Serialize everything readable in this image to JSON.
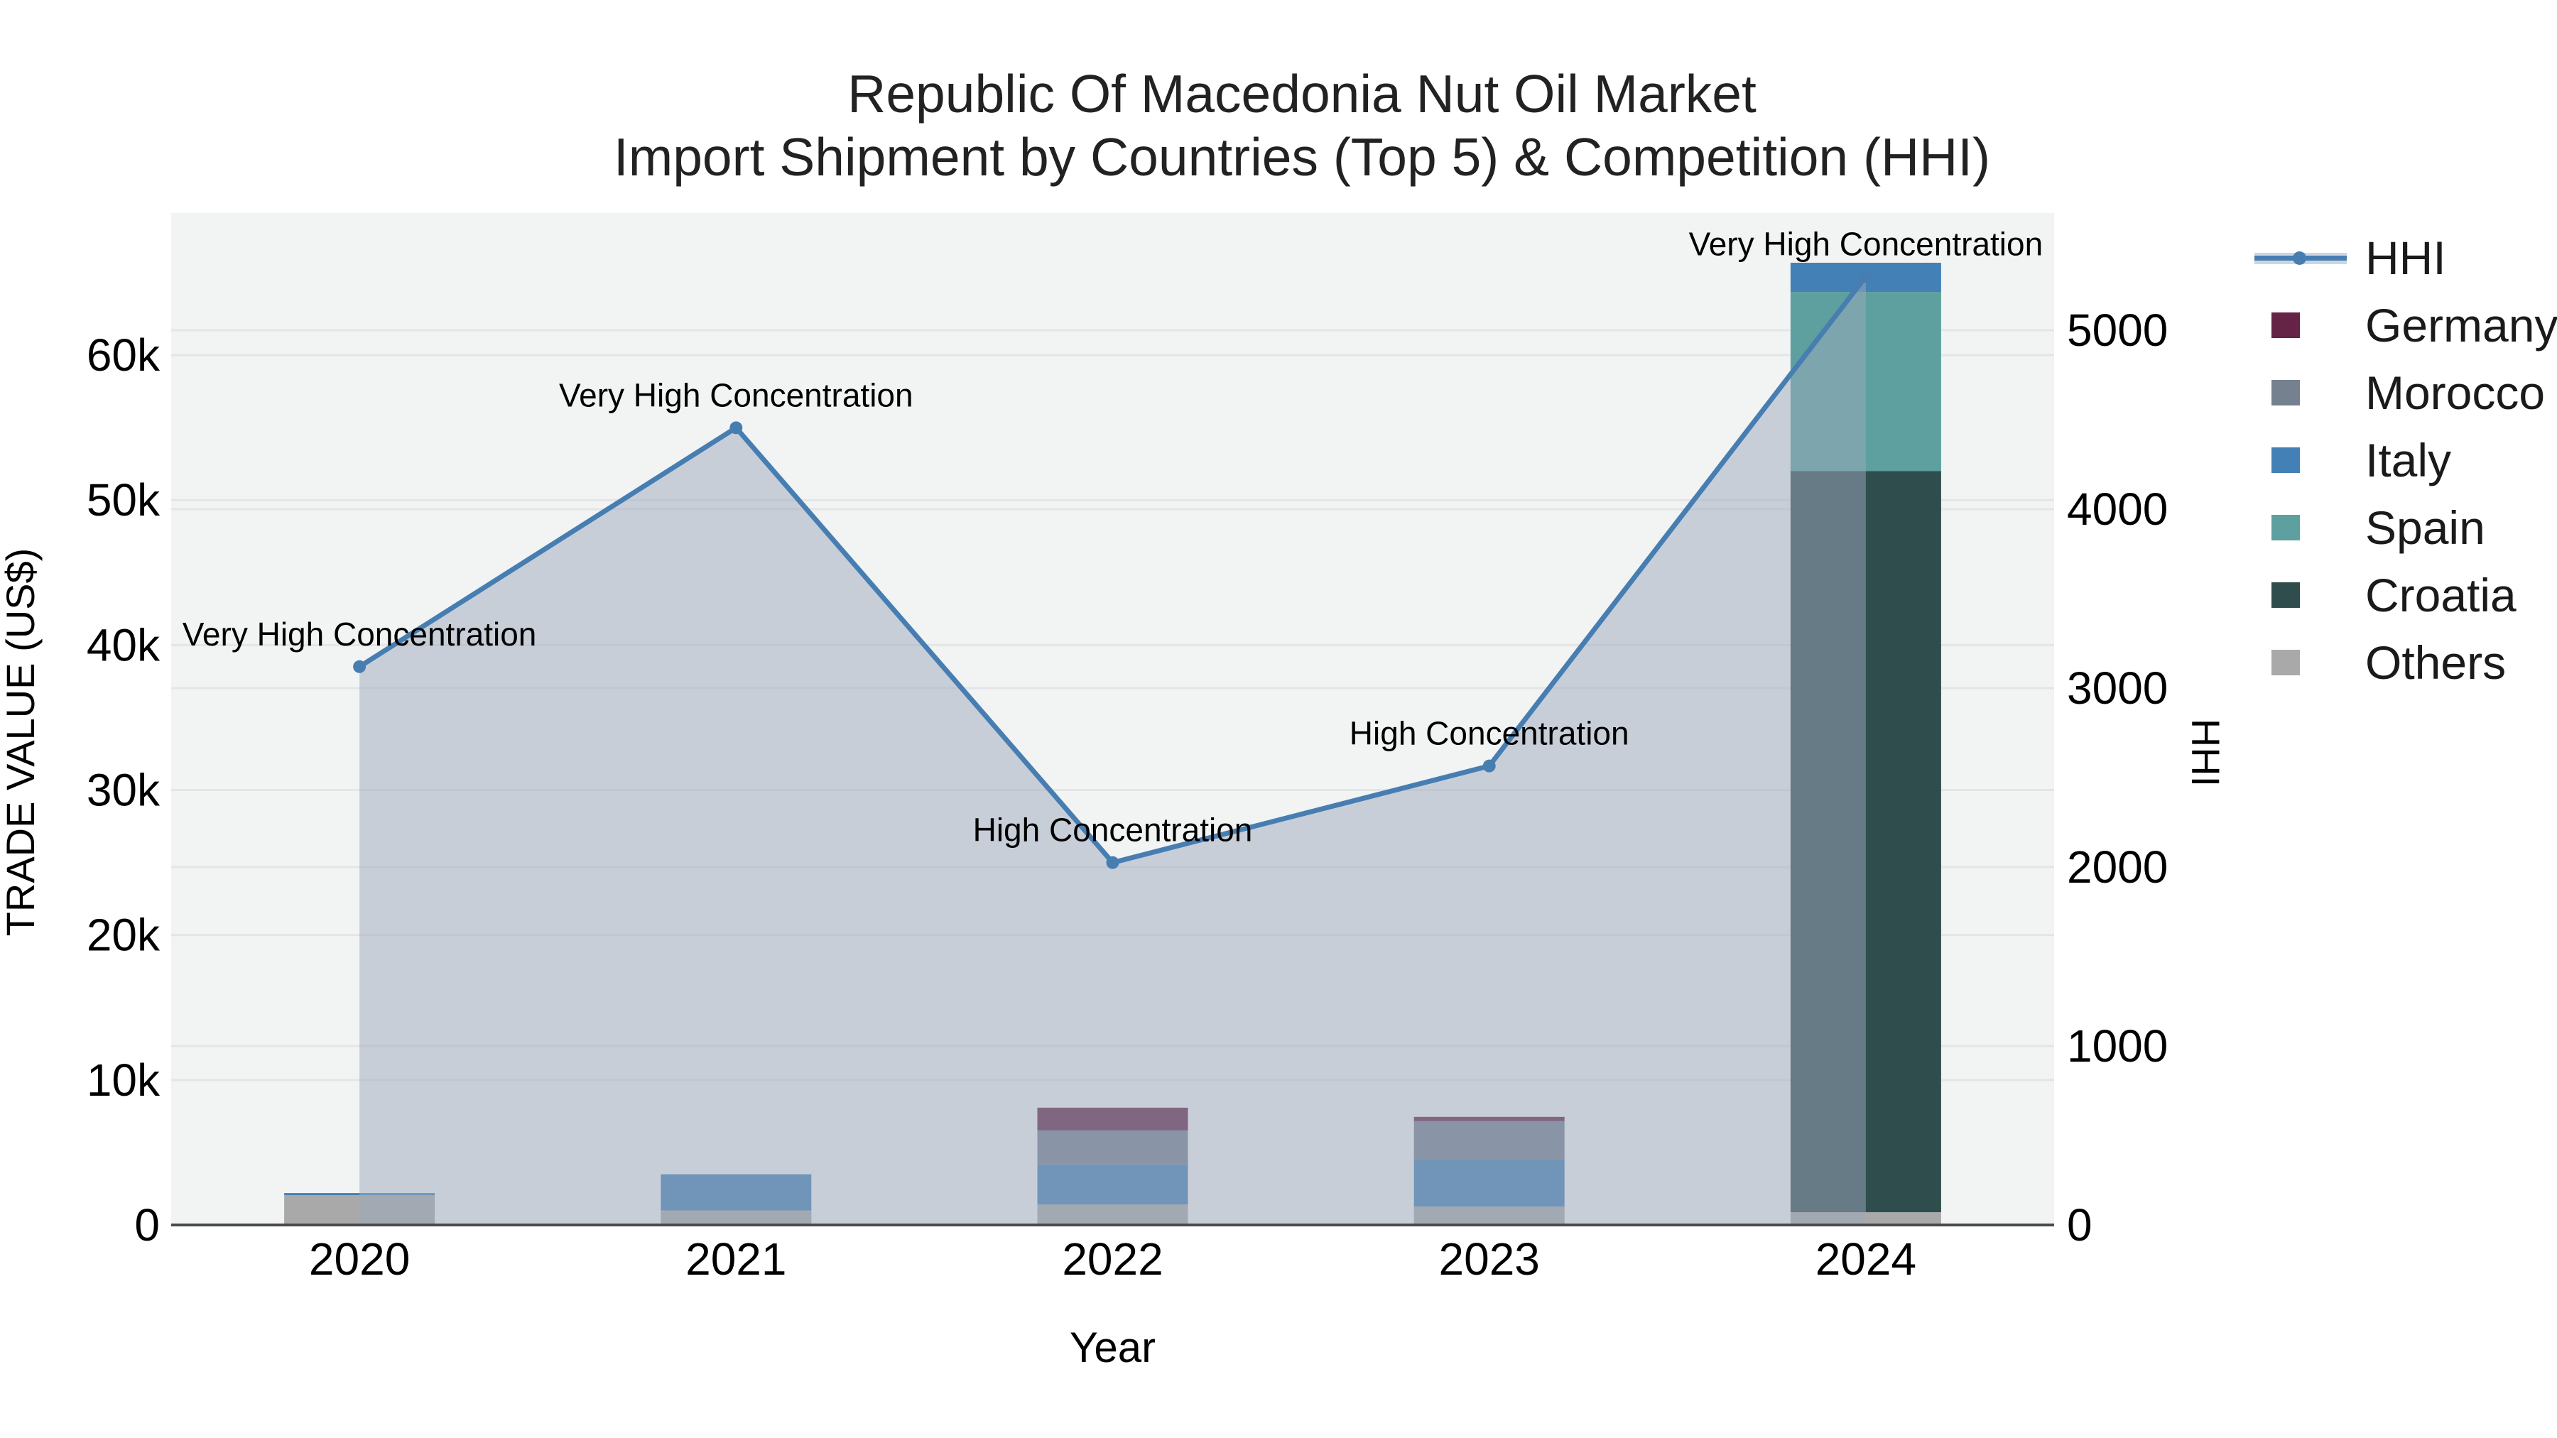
{
  "title": {
    "line1": "Republic Of Macedonia Nut Oil Market",
    "line2": "Import Shipment by Countries (Top 5) & Competition (HHI)"
  },
  "axes": {
    "x": {
      "title": "Year",
      "ticks": [
        "2020",
        "2021",
        "2022",
        "2023",
        "2024"
      ]
    },
    "y_left": {
      "title": "TRADE VALUE (US$)",
      "tick_labels": [
        "0",
        "10k",
        "20k",
        "30k",
        "40k",
        "50k",
        "60k"
      ],
      "tick_values": [
        0,
        10000,
        20000,
        30000,
        40000,
        50000,
        60000
      ]
    },
    "y_right": {
      "title": "HHI",
      "tick_labels": [
        "0",
        "1000",
        "2000",
        "3000",
        "4000",
        "5000"
      ],
      "tick_values": [
        0,
        1000,
        2000,
        3000,
        4000,
        5000
      ]
    }
  },
  "legend": {
    "position": "right",
    "items": [
      {
        "label": "HHI",
        "type": "line",
        "color": "#477eb2",
        "fill": "#cdd5e0"
      },
      {
        "label": "Germany",
        "type": "bar",
        "color": "#652345"
      },
      {
        "label": "Morocco",
        "type": "bar",
        "color": "#75818f"
      },
      {
        "label": "Italy",
        "type": "bar",
        "color": "#4380b5"
      },
      {
        "label": "Spain",
        "type": "bar",
        "color": "#5da09f"
      },
      {
        "label": "Croatia",
        "type": "bar",
        "color": "#2f4d4d"
      },
      {
        "label": "Others",
        "type": "bar",
        "color": "#a9a9a9"
      }
    ]
  },
  "chart_data": {
    "type": "bar+line",
    "title": "Republic Of Macedonia Nut Oil Market — Import Shipment by Countries (Top 5) & Competition (HHI)",
    "categories": [
      "2020",
      "2021",
      "2022",
      "2023",
      "2024"
    ],
    "bar_stack_order_bottom_to_top": [
      "Others",
      "Croatia",
      "Spain",
      "Italy",
      "Morocco",
      "Germany"
    ],
    "series": [
      {
        "name": "Others",
        "axis": "left",
        "color": "#a9a9a9",
        "values": [
          2050,
          1000,
          1420,
          1270,
          880
        ]
      },
      {
        "name": "Croatia",
        "axis": "left",
        "color": "#2f4d4d",
        "values": [
          0,
          0,
          0,
          0,
          51130
        ]
      },
      {
        "name": "Spain",
        "axis": "left",
        "color": "#5da09f",
        "values": [
          0,
          0,
          0,
          0,
          12350
        ]
      },
      {
        "name": "Italy",
        "axis": "left",
        "color": "#4380b5",
        "values": [
          150,
          2500,
          2750,
          3190,
          2010
        ]
      },
      {
        "name": "Morocco",
        "axis": "left",
        "color": "#75818f",
        "values": [
          0,
          0,
          2350,
          2700,
          0
        ]
      },
      {
        "name": "Germany",
        "axis": "left",
        "color": "#652345",
        "values": [
          0,
          0,
          1570,
          295,
          0
        ]
      }
    ],
    "line_series": {
      "name": "HHI",
      "axis": "right",
      "color": "#477eb2",
      "area_fill": "rgba(157,170,190,0.5)",
      "values": [
        3120,
        4455,
        2025,
        2565,
        5300
      ]
    },
    "annotations": [
      {
        "x": "2020",
        "text": "Very High Concentration"
      },
      {
        "x": "2021",
        "text": "Very High Concentration"
      },
      {
        "x": "2022",
        "text": "High Concentration"
      },
      {
        "x": "2023",
        "text": "High Concentration"
      },
      {
        "x": "2024",
        "text": "Very High Concentration"
      }
    ],
    "xlabel": "Year",
    "ylabel_left": "TRADE VALUE (US$)",
    "ylabel_right": "HHI",
    "ylim_left": [
      0,
      69800
    ],
    "ylim_right": [
      0,
      5655
    ],
    "grid": true,
    "legend_position": "right",
    "plot_bg": "#f2f3f3",
    "grid_color": "#e4e5e7",
    "axis_line_color": "#4a4a4a"
  }
}
